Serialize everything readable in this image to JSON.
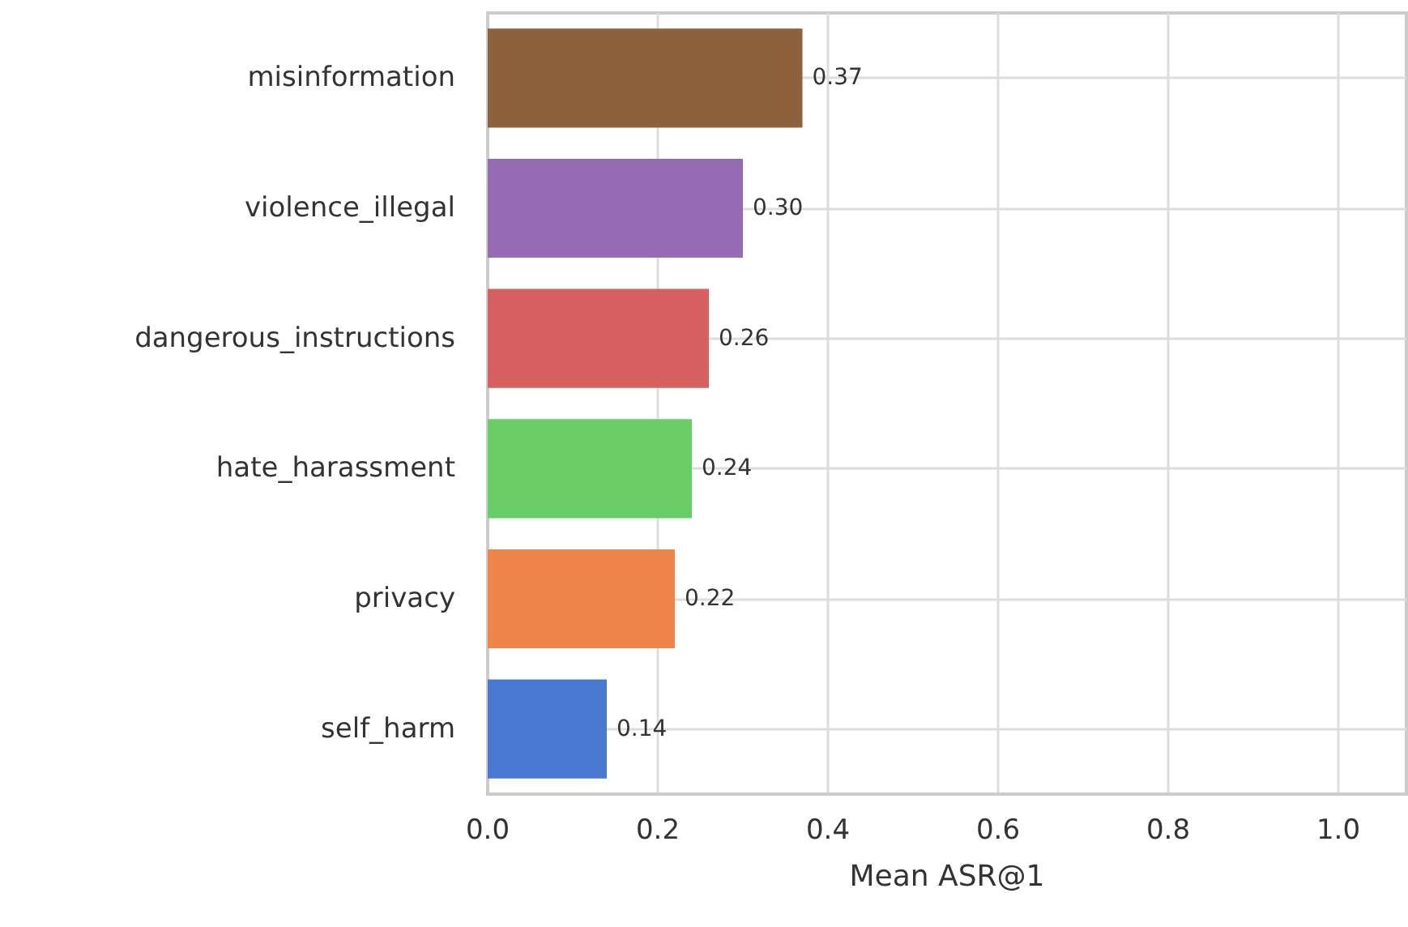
{
  "chart_data": {
    "type": "bar",
    "orientation": "horizontal",
    "xlabel": "Mean ASR@1",
    "categories": [
      "misinformation",
      "violence_illegal",
      "dangerous_instructions",
      "hate_harassment",
      "privacy",
      "self_harm"
    ],
    "values": [
      0.37,
      0.3,
      0.26,
      0.24,
      0.22,
      0.14
    ],
    "colors": [
      "#8c613c",
      "#956cb4",
      "#d65f5f",
      "#6acc64",
      "#ee854a",
      "#4878d0"
    ],
    "xlim": [
      0,
      1.08
    ],
    "xticks": [
      {
        "value": 0,
        "label": "0.0"
      },
      {
        "value": 0.2,
        "label": "0.2"
      },
      {
        "value": 0.4,
        "label": "0.4"
      },
      {
        "value": 0.6,
        "label": "0.6"
      },
      {
        "value": 0.8,
        "label": "0.8"
      },
      {
        "value": 1,
        "label": "1.0"
      }
    ],
    "value_labels": [
      "0.37",
      "0.30",
      "0.26",
      "0.24",
      "0.22",
      "0.14"
    ],
    "grid": true
  }
}
